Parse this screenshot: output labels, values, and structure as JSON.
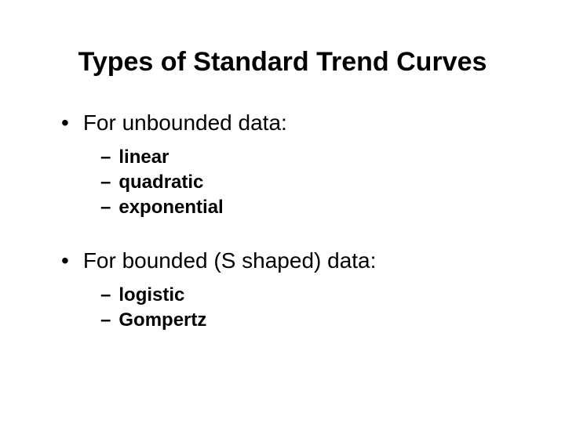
{
  "title": "Types of Standard Trend Curves",
  "sections": [
    {
      "heading": "For unbounded data:",
      "items": [
        "linear",
        "quadratic",
        "exponential"
      ]
    },
    {
      "heading": "For bounded (S shaped) data:",
      "items": [
        "logistic",
        "Gompertz"
      ]
    }
  ],
  "colors": {
    "background": "#ffffff",
    "text": "#000000"
  },
  "typography": {
    "title_fontsize": 34,
    "title_fontweight": "bold",
    "bullet_fontsize": 28,
    "bullet_fontweight": "normal",
    "sub_fontsize": 24,
    "sub_fontweight": "bold",
    "font_family": "Arial"
  }
}
